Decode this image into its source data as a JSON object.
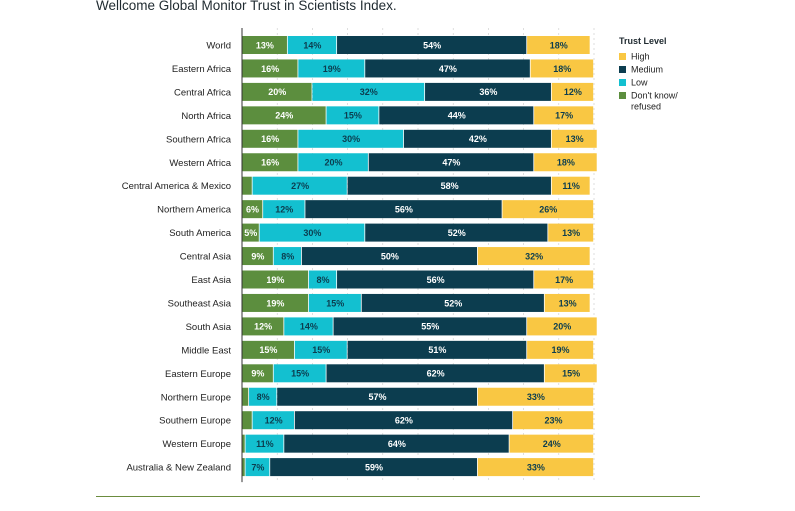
{
  "chart_data": {
    "type": "bar",
    "stacked": true,
    "orientation": "horizontal",
    "title": "Wellcome Global Monitor Trust in Scientists Index.",
    "legend": {
      "title": "Trust Level",
      "placement": "right",
      "items": [
        {
          "key": "high",
          "label": "High",
          "color": "#f9c743"
        },
        {
          "key": "medium",
          "label": "Medium",
          "color": "#0c3d4f"
        },
        {
          "key": "low",
          "label": "Low",
          "color": "#13c0d0"
        },
        {
          "key": "dk",
          "label": "Don't know/ refused",
          "color": "#5c8e3e"
        }
      ]
    },
    "segment_order": [
      "dk",
      "low",
      "medium",
      "high"
    ],
    "xlim": [
      0,
      100
    ],
    "grid": true,
    "categories": [
      "World",
      "Eastern Africa",
      "Central Africa",
      "North Africa",
      "Southern Africa",
      "Western Africa",
      "Central America & Mexico",
      "Northern America",
      "South America",
      "Central Asia",
      "East Asia",
      "Southeast Asia",
      "South Asia",
      "Middle East",
      "Eastern Europe",
      "Northern Europe",
      "Southern Europe",
      "Western Europe",
      "Australia & New Zealand"
    ],
    "series": [
      {
        "name": "Don't know/ refused",
        "key": "dk",
        "values": [
          13,
          16,
          20,
          24,
          16,
          16,
          3,
          6,
          5,
          9,
          19,
          19,
          12,
          15,
          9,
          2,
          3,
          1,
          1
        ],
        "labels": [
          "13%",
          "16%",
          "20%",
          "24%",
          "16%",
          "16%",
          "",
          "6%",
          "5%",
          "9%",
          "19%",
          "19%",
          "12%",
          "15%",
          "9%",
          "",
          "",
          "",
          ""
        ]
      },
      {
        "name": "Low",
        "key": "low",
        "values": [
          14,
          19,
          32,
          15,
          30,
          20,
          27,
          12,
          30,
          8,
          8,
          15,
          14,
          15,
          15,
          8,
          12,
          11,
          7
        ],
        "labels": [
          "14%",
          "19%",
          "32%",
          "15%",
          "30%",
          "20%",
          "27%",
          "12%",
          "30%",
          "8%",
          "8%",
          "15%",
          "14%",
          "15%",
          "15%",
          "8%",
          "12%",
          "11%",
          "7%"
        ]
      },
      {
        "name": "Medium",
        "key": "medium",
        "values": [
          54,
          47,
          36,
          44,
          42,
          47,
          58,
          56,
          52,
          50,
          56,
          52,
          55,
          51,
          62,
          57,
          62,
          64,
          59
        ],
        "labels": [
          "54%",
          "47%",
          "36%",
          "44%",
          "42%",
          "47%",
          "58%",
          "56%",
          "52%",
          "50%",
          "56%",
          "52%",
          "55%",
          "51%",
          "62%",
          "57%",
          "62%",
          "64%",
          "59%"
        ]
      },
      {
        "name": "High",
        "key": "high",
        "values": [
          18,
          18,
          12,
          17,
          13,
          18,
          11,
          26,
          13,
          32,
          17,
          13,
          20,
          19,
          15,
          33,
          23,
          24,
          33
        ],
        "labels": [
          "18%",
          "18%",
          "12%",
          "17%",
          "13%",
          "18%",
          "11%",
          "26%",
          "13%",
          "32%",
          "17%",
          "13%",
          "20%",
          "19%",
          "15%",
          "33%",
          "23%",
          "24%",
          "33%"
        ]
      }
    ]
  }
}
